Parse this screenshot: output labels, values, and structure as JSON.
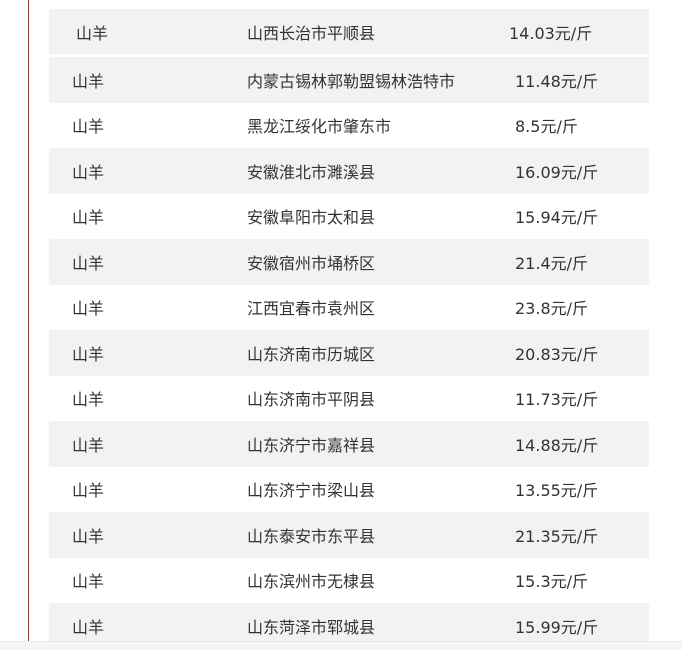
{
  "rows": [
    {
      "animal": "山羊",
      "location": "山西长治市平顺县",
      "price": "14.03元/斤"
    },
    {
      "animal": "山羊",
      "location": "内蒙古锡林郭勒盟锡林浩特市",
      "price": "11.48元/斤"
    },
    {
      "animal": "山羊",
      "location": "黑龙江绥化市肇东市",
      "price": "8.5元/斤"
    },
    {
      "animal": "山羊",
      "location": "安徽淮北市濉溪县",
      "price": "16.09元/斤"
    },
    {
      "animal": "山羊",
      "location": "安徽阜阳市太和县",
      "price": "15.94元/斤"
    },
    {
      "animal": "山羊",
      "location": "安徽宿州市埇桥区",
      "price": "21.4元/斤"
    },
    {
      "animal": "山羊",
      "location": "江西宜春市袁州区",
      "price": "23.8元/斤"
    },
    {
      "animal": "山羊",
      "location": "山东济南市历城区",
      "price": "20.83元/斤"
    },
    {
      "animal": "山羊",
      "location": "山东济南市平阴县",
      "price": "11.73元/斤"
    },
    {
      "animal": "山羊",
      "location": "山东济宁市嘉祥县",
      "price": "14.88元/斤"
    },
    {
      "animal": "山羊",
      "location": "山东济宁市梁山县",
      "price": "13.55元/斤"
    },
    {
      "animal": "山羊",
      "location": "山东泰安市东平县",
      "price": "21.35元/斤"
    },
    {
      "animal": "山羊",
      "location": "山东滨州市无棣县",
      "price": "15.3元/斤"
    },
    {
      "animal": "山羊",
      "location": "山东菏泽市郓城县",
      "price": "15.99元/斤"
    }
  ],
  "colors": {
    "accent_line": "#d81e06",
    "row_shade": "#f2f2f2"
  }
}
